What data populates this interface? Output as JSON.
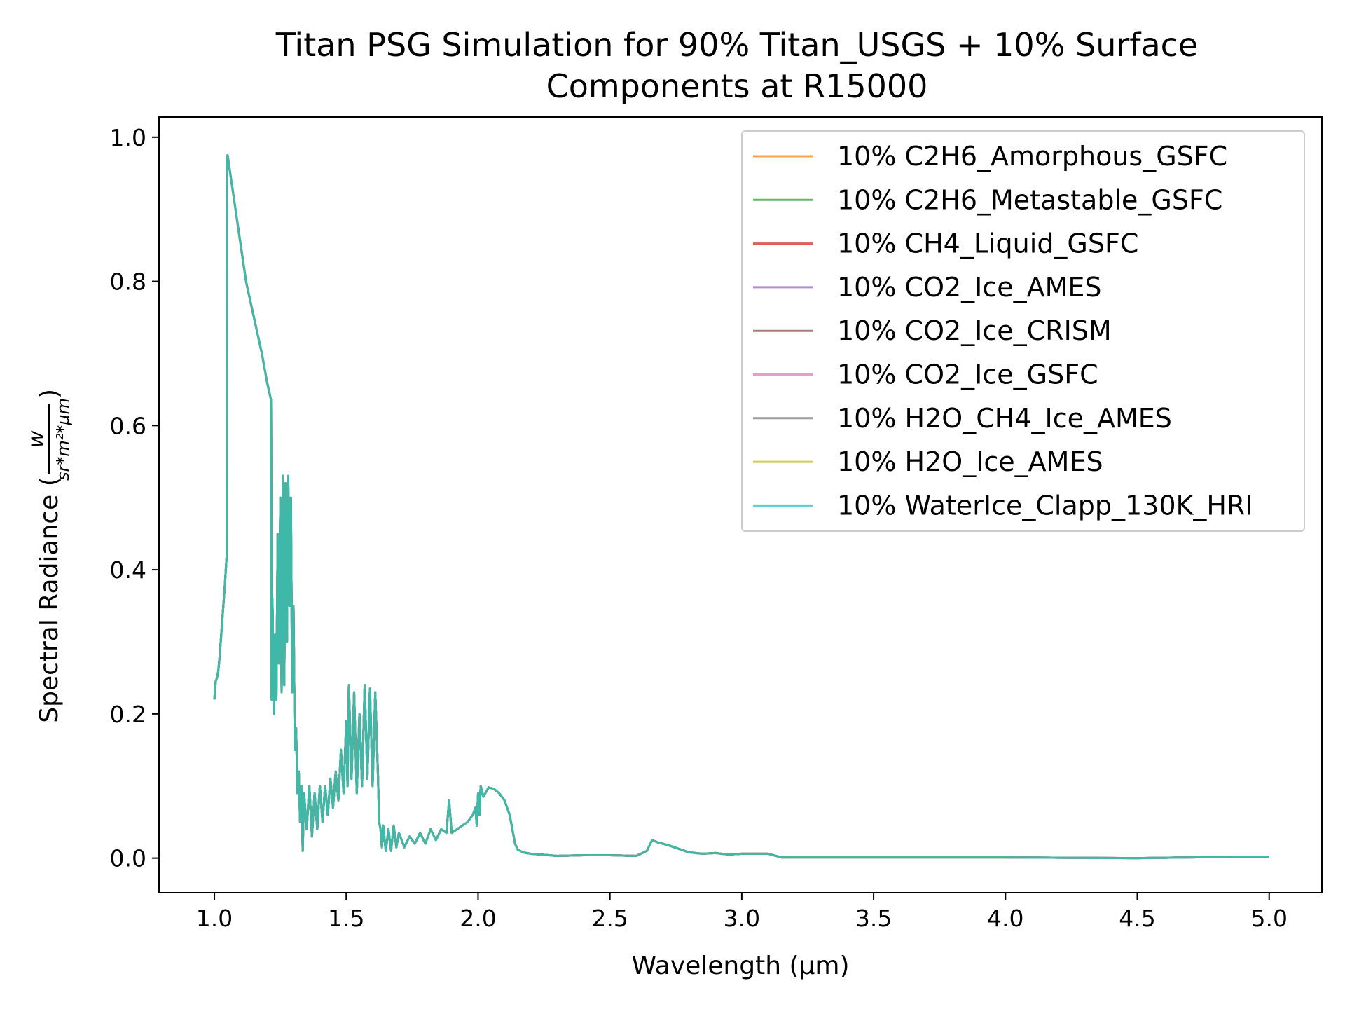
{
  "chart_data": {
    "type": "line",
    "title": [
      "Titan PSG Simulation for 90% Titan_USGS + 10% Surface",
      "Components at R15000"
    ],
    "xlabel": "Wavelength (μm)",
    "ylabel": "Spectral Radiance (",
    "ylabel_fraction": {
      "numerator": "W",
      "denominator": "sr*m²*μm"
    },
    "ylabel_close": ")",
    "xlim": [
      0.79,
      5.2
    ],
    "ylim": [
      -0.048,
      1.028
    ],
    "xticks": [
      1.0,
      1.5,
      2.0,
      2.5,
      3.0,
      3.5,
      4.0,
      4.5,
      5.0
    ],
    "xtick_labels": [
      "1.0",
      "1.5",
      "2.0",
      "2.5",
      "3.0",
      "3.5",
      "4.0",
      "4.5",
      "5.0"
    ],
    "yticks": [
      0.0,
      0.2,
      0.4,
      0.6,
      0.8,
      1.0
    ],
    "ytick_labels": [
      "0.0",
      "0.2",
      "0.4",
      "0.6",
      "0.8",
      "1.0"
    ],
    "grid": false,
    "legend_position": "top-right",
    "spectrum": [
      [
        1.0,
        0.22
      ],
      [
        1.005,
        0.245
      ],
      [
        1.01,
        0.25
      ],
      [
        1.015,
        0.26
      ],
      [
        1.02,
        0.28
      ],
      [
        1.03,
        0.33
      ],
      [
        1.04,
        0.38
      ],
      [
        1.045,
        0.41
      ],
      [
        1.047,
        0.42
      ],
      [
        1.048,
        0.97
      ],
      [
        1.05,
        0.975
      ],
      [
        1.06,
        0.95
      ],
      [
        1.08,
        0.9
      ],
      [
        1.1,
        0.85
      ],
      [
        1.12,
        0.8
      ],
      [
        1.15,
        0.75
      ],
      [
        1.18,
        0.7
      ],
      [
        1.2,
        0.66
      ],
      [
        1.215,
        0.635
      ],
      [
        1.217,
        0.22
      ],
      [
        1.22,
        0.36
      ],
      [
        1.225,
        0.2
      ],
      [
        1.23,
        0.31
      ],
      [
        1.235,
        0.22
      ],
      [
        1.24,
        0.45
      ],
      [
        1.245,
        0.27
      ],
      [
        1.25,
        0.5
      ],
      [
        1.255,
        0.23
      ],
      [
        1.26,
        0.53
      ],
      [
        1.265,
        0.24
      ],
      [
        1.27,
        0.52
      ],
      [
        1.275,
        0.3
      ],
      [
        1.28,
        0.53
      ],
      [
        1.285,
        0.35
      ],
      [
        1.29,
        0.5
      ],
      [
        1.295,
        0.23
      ],
      [
        1.3,
        0.35
      ],
      [
        1.305,
        0.15
      ],
      [
        1.31,
        0.18
      ],
      [
        1.315,
        0.09
      ],
      [
        1.32,
        0.12
      ],
      [
        1.325,
        0.05
      ],
      [
        1.33,
        0.1
      ],
      [
        1.335,
        0.01
      ],
      [
        1.34,
        0.09
      ],
      [
        1.35,
        0.04
      ],
      [
        1.36,
        0.1
      ],
      [
        1.37,
        0.03
      ],
      [
        1.38,
        0.09
      ],
      [
        1.39,
        0.04
      ],
      [
        1.4,
        0.1
      ],
      [
        1.41,
        0.05
      ],
      [
        1.42,
        0.1
      ],
      [
        1.43,
        0.06
      ],
      [
        1.44,
        0.11
      ],
      [
        1.45,
        0.07
      ],
      [
        1.46,
        0.12
      ],
      [
        1.47,
        0.08
      ],
      [
        1.48,
        0.15
      ],
      [
        1.49,
        0.09
      ],
      [
        1.5,
        0.19
      ],
      [
        1.505,
        0.1
      ],
      [
        1.51,
        0.24
      ],
      [
        1.52,
        0.11
      ],
      [
        1.53,
        0.23
      ],
      [
        1.54,
        0.09
      ],
      [
        1.55,
        0.2
      ],
      [
        1.56,
        0.1
      ],
      [
        1.57,
        0.24
      ],
      [
        1.58,
        0.11
      ],
      [
        1.59,
        0.235
      ],
      [
        1.6,
        0.1
      ],
      [
        1.61,
        0.23
      ],
      [
        1.62,
        0.12
      ],
      [
        1.625,
        0.05
      ],
      [
        1.63,
        0.04
      ],
      [
        1.635,
        0.015
      ],
      [
        1.64,
        0.045
      ],
      [
        1.65,
        0.01
      ],
      [
        1.66,
        0.04
      ],
      [
        1.67,
        0.01
      ],
      [
        1.68,
        0.045
      ],
      [
        1.69,
        0.015
      ],
      [
        1.7,
        0.035
      ],
      [
        1.72,
        0.015
      ],
      [
        1.74,
        0.03
      ],
      [
        1.76,
        0.02
      ],
      [
        1.78,
        0.035
      ],
      [
        1.8,
        0.02
      ],
      [
        1.82,
        0.04
      ],
      [
        1.84,
        0.025
      ],
      [
        1.86,
        0.04
      ],
      [
        1.88,
        0.035
      ],
      [
        1.89,
        0.08
      ],
      [
        1.9,
        0.035
      ],
      [
        1.92,
        0.04
      ],
      [
        1.94,
        0.045
      ],
      [
        1.96,
        0.05
      ],
      [
        1.98,
        0.06
      ],
      [
        1.99,
        0.07
      ],
      [
        1.995,
        0.045
      ],
      [
        2.0,
        0.09
      ],
      [
        2.005,
        0.06
      ],
      [
        2.01,
        0.1
      ],
      [
        2.02,
        0.085
      ],
      [
        2.04,
        0.098
      ],
      [
        2.06,
        0.096
      ],
      [
        2.08,
        0.09
      ],
      [
        2.1,
        0.08
      ],
      [
        2.12,
        0.06
      ],
      [
        2.13,
        0.04
      ],
      [
        2.14,
        0.02
      ],
      [
        2.15,
        0.012
      ],
      [
        2.17,
        0.008
      ],
      [
        2.2,
        0.006
      ],
      [
        2.3,
        0.003
      ],
      [
        2.4,
        0.004
      ],
      [
        2.5,
        0.004
      ],
      [
        2.6,
        0.003
      ],
      [
        2.64,
        0.01
      ],
      [
        2.66,
        0.025
      ],
      [
        2.68,
        0.022
      ],
      [
        2.72,
        0.018
      ],
      [
        2.76,
        0.013
      ],
      [
        2.8,
        0.008
      ],
      [
        2.85,
        0.006
      ],
      [
        2.9,
        0.007
      ],
      [
        2.95,
        0.005
      ],
      [
        3.0,
        0.006
      ],
      [
        3.05,
        0.006
      ],
      [
        3.1,
        0.006
      ],
      [
        3.15,
        0.001
      ],
      [
        3.3,
        0.001
      ],
      [
        3.6,
        0.001
      ],
      [
        4.0,
        0.001
      ],
      [
        4.5,
        0.0
      ],
      [
        4.7,
        0.001
      ],
      [
        4.9,
        0.002
      ],
      [
        5.0,
        0.002
      ]
    ],
    "series": [
      {
        "name": "10% C2H6_Amorphous_GSFC",
        "color": "#ff7f0e"
      },
      {
        "name": "10% C2H6_Metastable_GSFC",
        "color": "#2ca02c"
      },
      {
        "name": "10% CH4_Liquid_GSFC",
        "color": "#d62728"
      },
      {
        "name": "10% CO2_Ice_AMES",
        "color": "#9467bd"
      },
      {
        "name": "10% CO2_Ice_CRISM",
        "color": "#8c564b"
      },
      {
        "name": "10% CO2_Ice_GSFC",
        "color": "#e377c2"
      },
      {
        "name": "10% H2O_CH4_Ice_AMES",
        "color": "#7f7f7f"
      },
      {
        "name": "10% H2O_Ice_AMES",
        "color": "#bcbd22"
      },
      {
        "name": "10% WaterIce_Clapp_130K_HRI",
        "color": "#17becf"
      }
    ]
  }
}
